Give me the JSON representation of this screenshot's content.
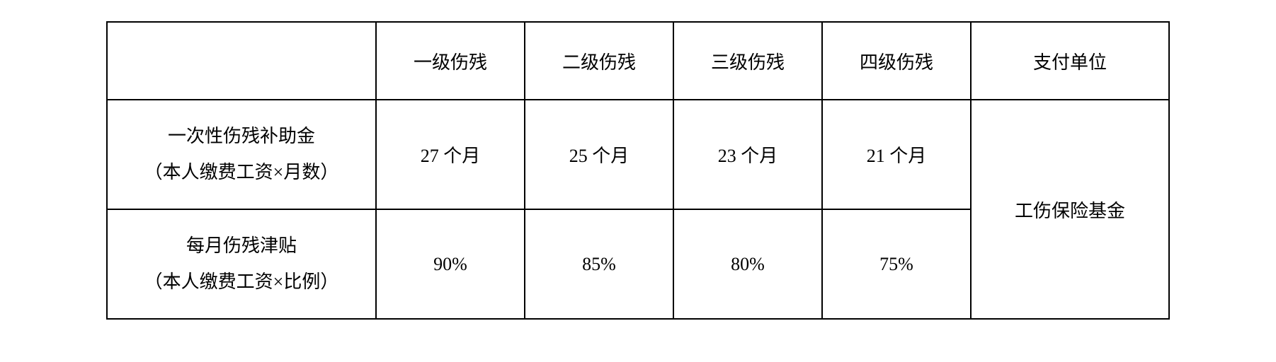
{
  "table": {
    "type": "table",
    "background_color": "#ffffff",
    "border_color": "#000000",
    "text_color": "#000000",
    "font_family": "SimSun",
    "header_fontsize": 26,
    "cell_fontsize": 26,
    "border_width": 2,
    "columns": {
      "blank_header": "",
      "level1": "一级伤残",
      "level2": "二级伤残",
      "level3": "三级伤残",
      "level4": "四级伤残",
      "payer": "支付单位"
    },
    "rows": {
      "lump_sum": {
        "label_line1": "一次性伤残补助金",
        "label_line2": "（本人缴费工资×月数）",
        "level1": "27 个月",
        "level2": "25 个月",
        "level3": "23 个月",
        "level4": "21 个月"
      },
      "monthly_allowance": {
        "label_line1": "每月伤残津贴",
        "label_line2": "（本人缴费工资×比例）",
        "level1": "90%",
        "level2": "85%",
        "level3": "80%",
        "level4": "75%"
      }
    },
    "payer_value": "工伤保险基金",
    "col_widths": {
      "label": 380,
      "level": 210,
      "payer": 280
    },
    "row_heights": {
      "header": 110,
      "data": 155
    }
  }
}
